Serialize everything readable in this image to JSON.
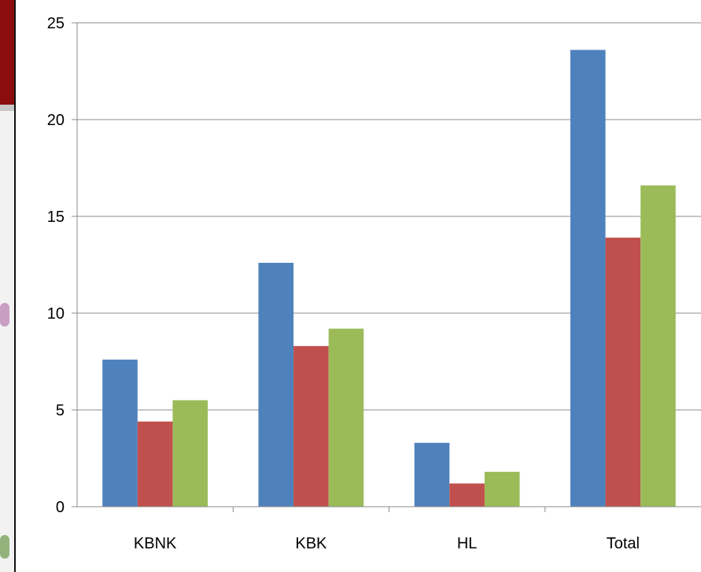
{
  "chart_data": {
    "type": "bar",
    "categories": [
      "KBNK",
      "KBK",
      "HL",
      "Total"
    ],
    "series": [
      {
        "values": [
          7.6,
          12.6,
          3.3,
          23.6
        ],
        "color": "#4f81bd"
      },
      {
        "values": [
          4.4,
          8.3,
          1.2,
          13.9
        ],
        "color": "#c0504d"
      },
      {
        "values": [
          5.5,
          9.2,
          1.8,
          16.6
        ],
        "color": "#9bbb59"
      }
    ],
    "ylim": [
      0,
      25
    ],
    "yticks": [
      "0",
      "5",
      "10",
      "15",
      "20",
      "25"
    ],
    "grid": true,
    "legend": "none"
  }
}
